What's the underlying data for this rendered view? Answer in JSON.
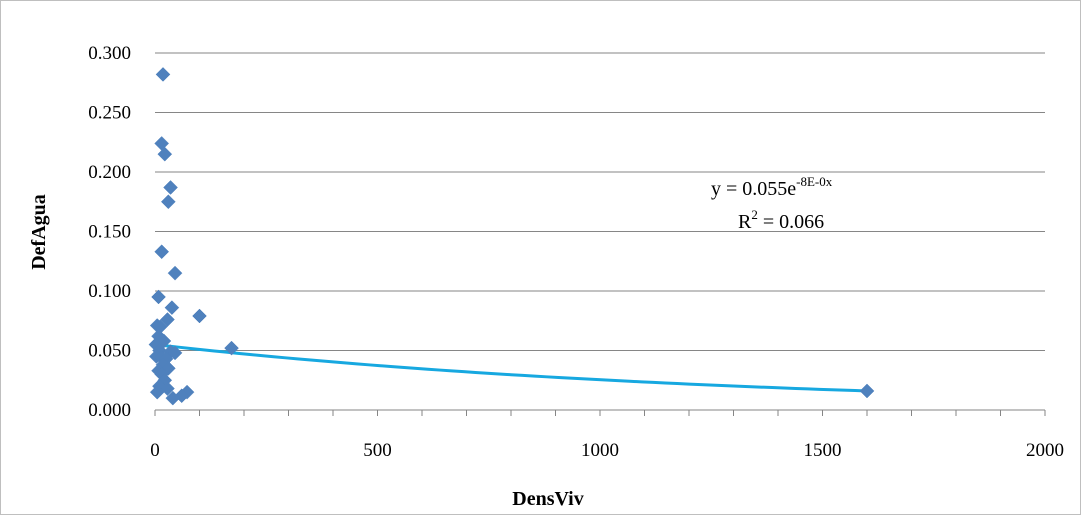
{
  "chart_data": {
    "type": "scatter",
    "xlabel": "DensViv",
    "ylabel": "DefAgua",
    "xlim": [
      0,
      2000
    ],
    "ylim": [
      0,
      0.3
    ],
    "x_ticks": [
      0,
      500,
      1000,
      1500,
      2000
    ],
    "x_tick_labels": [
      "0",
      "500",
      "1000",
      "1500",
      "2000"
    ],
    "x_minor_step": 100,
    "y_ticks": [
      0,
      0.05,
      0.1,
      0.15,
      0.2,
      0.25,
      0.3
    ],
    "y_tick_labels": [
      "0.000",
      "0.050",
      "0.100",
      "0.150",
      "0.200",
      "0.250",
      "0.300"
    ],
    "grid": "horizontal",
    "series": [
      {
        "marker": "diamond",
        "color": "#4f81bd",
        "points": [
          {
            "x": 18,
            "y": 0.282
          },
          {
            "x": 15,
            "y": 0.224
          },
          {
            "x": 22,
            "y": 0.215
          },
          {
            "x": 35,
            "y": 0.187
          },
          {
            "x": 30,
            "y": 0.175
          },
          {
            "x": 15,
            "y": 0.133
          },
          {
            "x": 45,
            "y": 0.115
          },
          {
            "x": 8,
            "y": 0.095
          },
          {
            "x": 38,
            "y": 0.086
          },
          {
            "x": 100,
            "y": 0.079
          },
          {
            "x": 28,
            "y": 0.076
          },
          {
            "x": 5,
            "y": 0.071
          },
          {
            "x": 12,
            "y": 0.07
          },
          {
            "x": 8,
            "y": 0.062
          },
          {
            "x": 20,
            "y": 0.058
          },
          {
            "x": 172,
            "y": 0.052
          },
          {
            "x": 2,
            "y": 0.055
          },
          {
            "x": 10,
            "y": 0.05
          },
          {
            "x": 35,
            "y": 0.049
          },
          {
            "x": 45,
            "y": 0.048
          },
          {
            "x": 3,
            "y": 0.045
          },
          {
            "x": 15,
            "y": 0.044
          },
          {
            "x": 25,
            "y": 0.043
          },
          {
            "x": 18,
            "y": 0.038
          },
          {
            "x": 30,
            "y": 0.035
          },
          {
            "x": 8,
            "y": 0.033
          },
          {
            "x": 15,
            "y": 0.03
          },
          {
            "x": 22,
            "y": 0.025
          },
          {
            "x": 10,
            "y": 0.02
          },
          {
            "x": 28,
            "y": 0.018
          },
          {
            "x": 5,
            "y": 0.015
          },
          {
            "x": 72,
            "y": 0.015
          },
          {
            "x": 60,
            "y": 0.012
          },
          {
            "x": 40,
            "y": 0.01
          },
          {
            "x": 1600,
            "y": 0.016
          }
        ]
      }
    ],
    "trendline": {
      "type": "exponential",
      "color": "#17a8e0",
      "x_range": [
        0,
        1600
      ],
      "y_at_start": 0.055,
      "y_at_end": 0.016
    },
    "annotations": {
      "equation_prefix": "y = 0.055e",
      "equation_exponent": "-8E-0x",
      "r2_prefix": "R",
      "r2_superscript": "2",
      "r2_suffix": " = 0.066"
    }
  }
}
